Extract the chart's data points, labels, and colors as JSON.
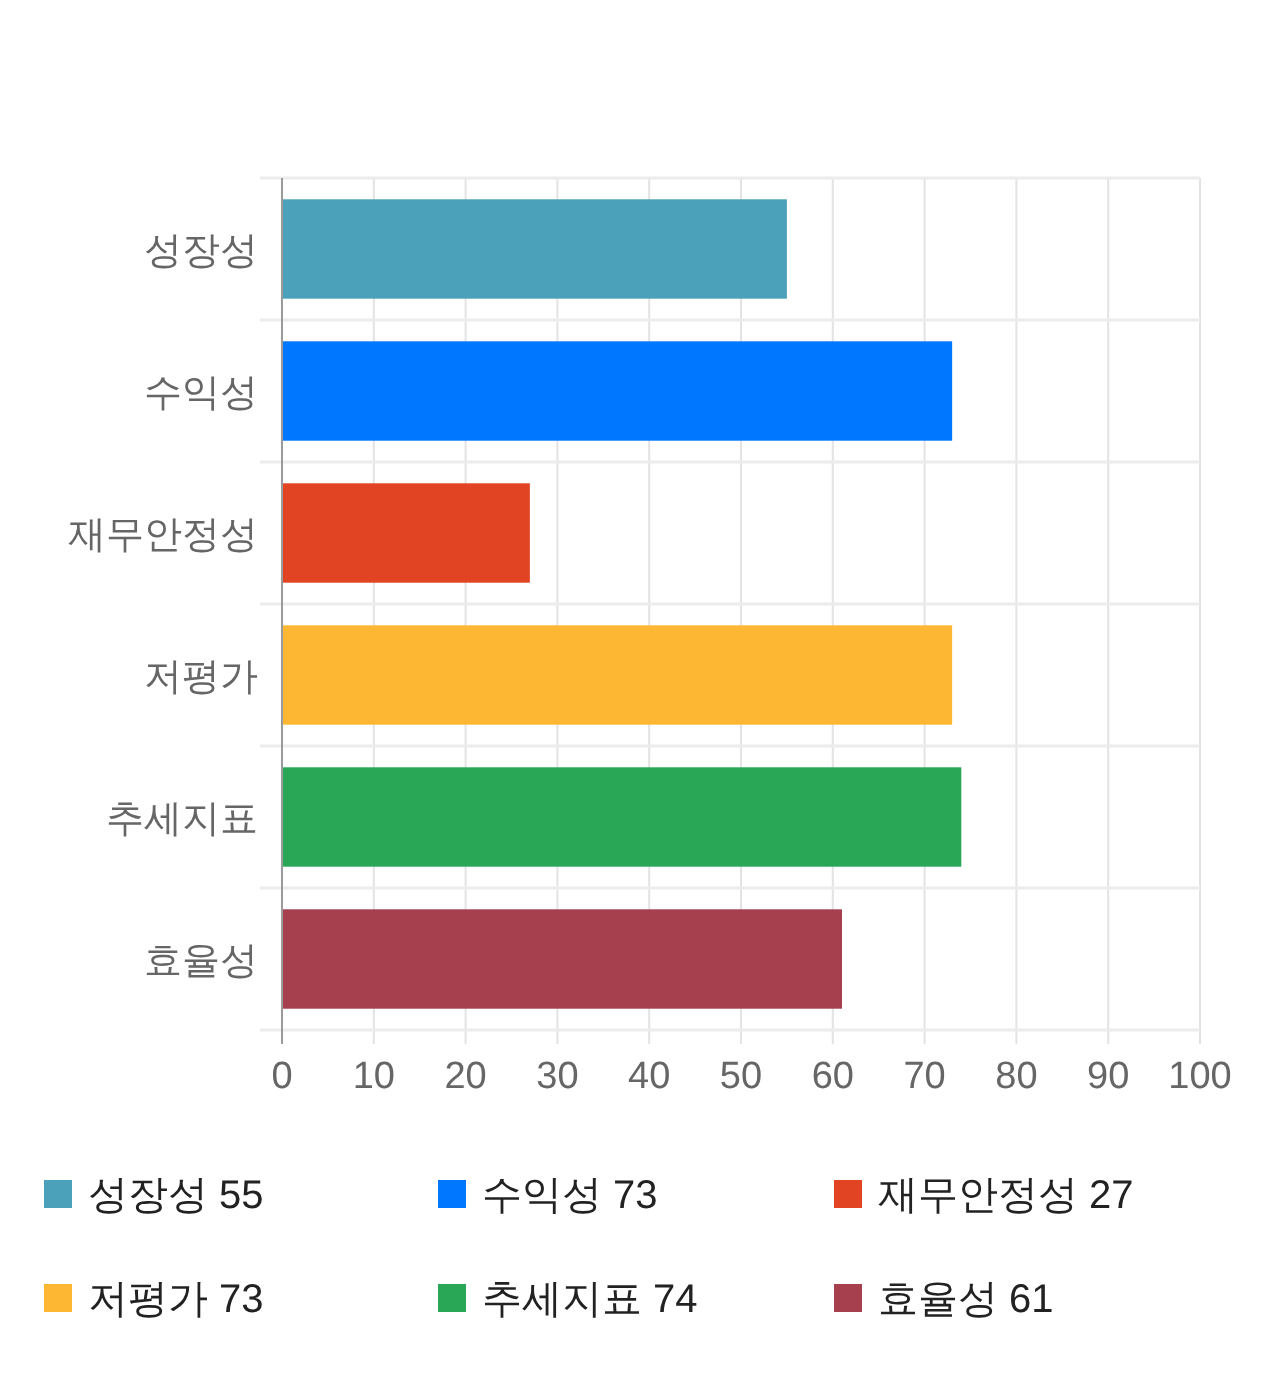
{
  "chart_data": {
    "type": "bar",
    "orientation": "horizontal",
    "categories": [
      "성장성",
      "수익성",
      "재무안정성",
      "저평가",
      "추세지표",
      "효율성"
    ],
    "series": [
      {
        "name": "성장성 55",
        "color": "#4ba1b9",
        "values": [
          55,
          null,
          null,
          null,
          null,
          null
        ]
      },
      {
        "name": "수익성 73",
        "color": "#0077ff",
        "values": [
          null,
          73,
          null,
          null,
          null,
          null
        ]
      },
      {
        "name": "재무안정성 27",
        "color": "#e04423",
        "values": [
          null,
          null,
          27,
          null,
          null,
          null
        ]
      },
      {
        "name": "저평가 73",
        "color": "#fdb733",
        "values": [
          null,
          null,
          null,
          73,
          null,
          null
        ]
      },
      {
        "name": "추세지표 74",
        "color": "#29a756",
        "values": [
          null,
          null,
          null,
          null,
          74,
          null
        ]
      },
      {
        "name": "효율성 61",
        "color": "#a6404e",
        "values": [
          null,
          null,
          null,
          null,
          null,
          61
        ]
      }
    ],
    "xlim": [
      0,
      100
    ],
    "xticks": [
      0,
      10,
      20,
      30,
      40,
      50,
      60,
      70,
      80,
      90,
      100
    ],
    "grid": true,
    "legend": "bottom"
  }
}
